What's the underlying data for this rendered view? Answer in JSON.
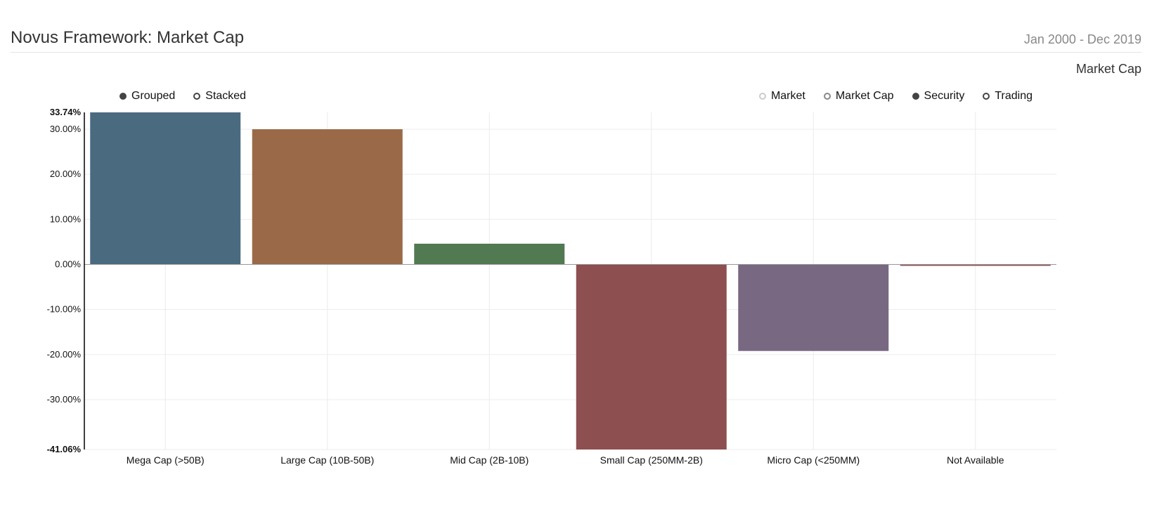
{
  "header": {
    "title": "Novus Framework: Market Cap",
    "date_range": "Jan 2000 - Dec 2019",
    "subtitle": "Market Cap"
  },
  "mode_legend": [
    {
      "label": "Grouped",
      "state": "filled"
    },
    {
      "label": "Stacked",
      "state": "open"
    }
  ],
  "group_legend": [
    {
      "label": "Market",
      "state": "open-light"
    },
    {
      "label": "Market Cap",
      "state": "open-mid"
    },
    {
      "label": "Security",
      "state": "filled"
    },
    {
      "label": "Trading",
      "state": "open"
    }
  ],
  "chart_data": {
    "type": "bar",
    "categories": [
      "Mega Cap (>50B)",
      "Large Cap (10B-50B)",
      "Mid Cap (2B-10B)",
      "Small Cap (250MM-2B)",
      "Micro Cap (<250MM)",
      "Not Available"
    ],
    "values": [
      33.74,
      30.0,
      4.6,
      -41.06,
      -19.2,
      -0.2
    ],
    "colors": [
      "#4a6a80",
      "#9a6a48",
      "#517a52",
      "#8d4f50",
      "#786882",
      "#8a5555"
    ],
    "ylim": [
      -41.06,
      33.74
    ],
    "yticks": [
      30,
      20,
      10,
      0,
      -10,
      -20,
      -30
    ],
    "ytick_labels": [
      "30.00%",
      "20.00%",
      "10.00%",
      "0.00%",
      "-10.00%",
      "-20.00%",
      "-30.00%"
    ],
    "ymax_label": "33.74%",
    "ymin_label": "-41.06%",
    "grid": true,
    "xlabel": "",
    "ylabel": ""
  }
}
